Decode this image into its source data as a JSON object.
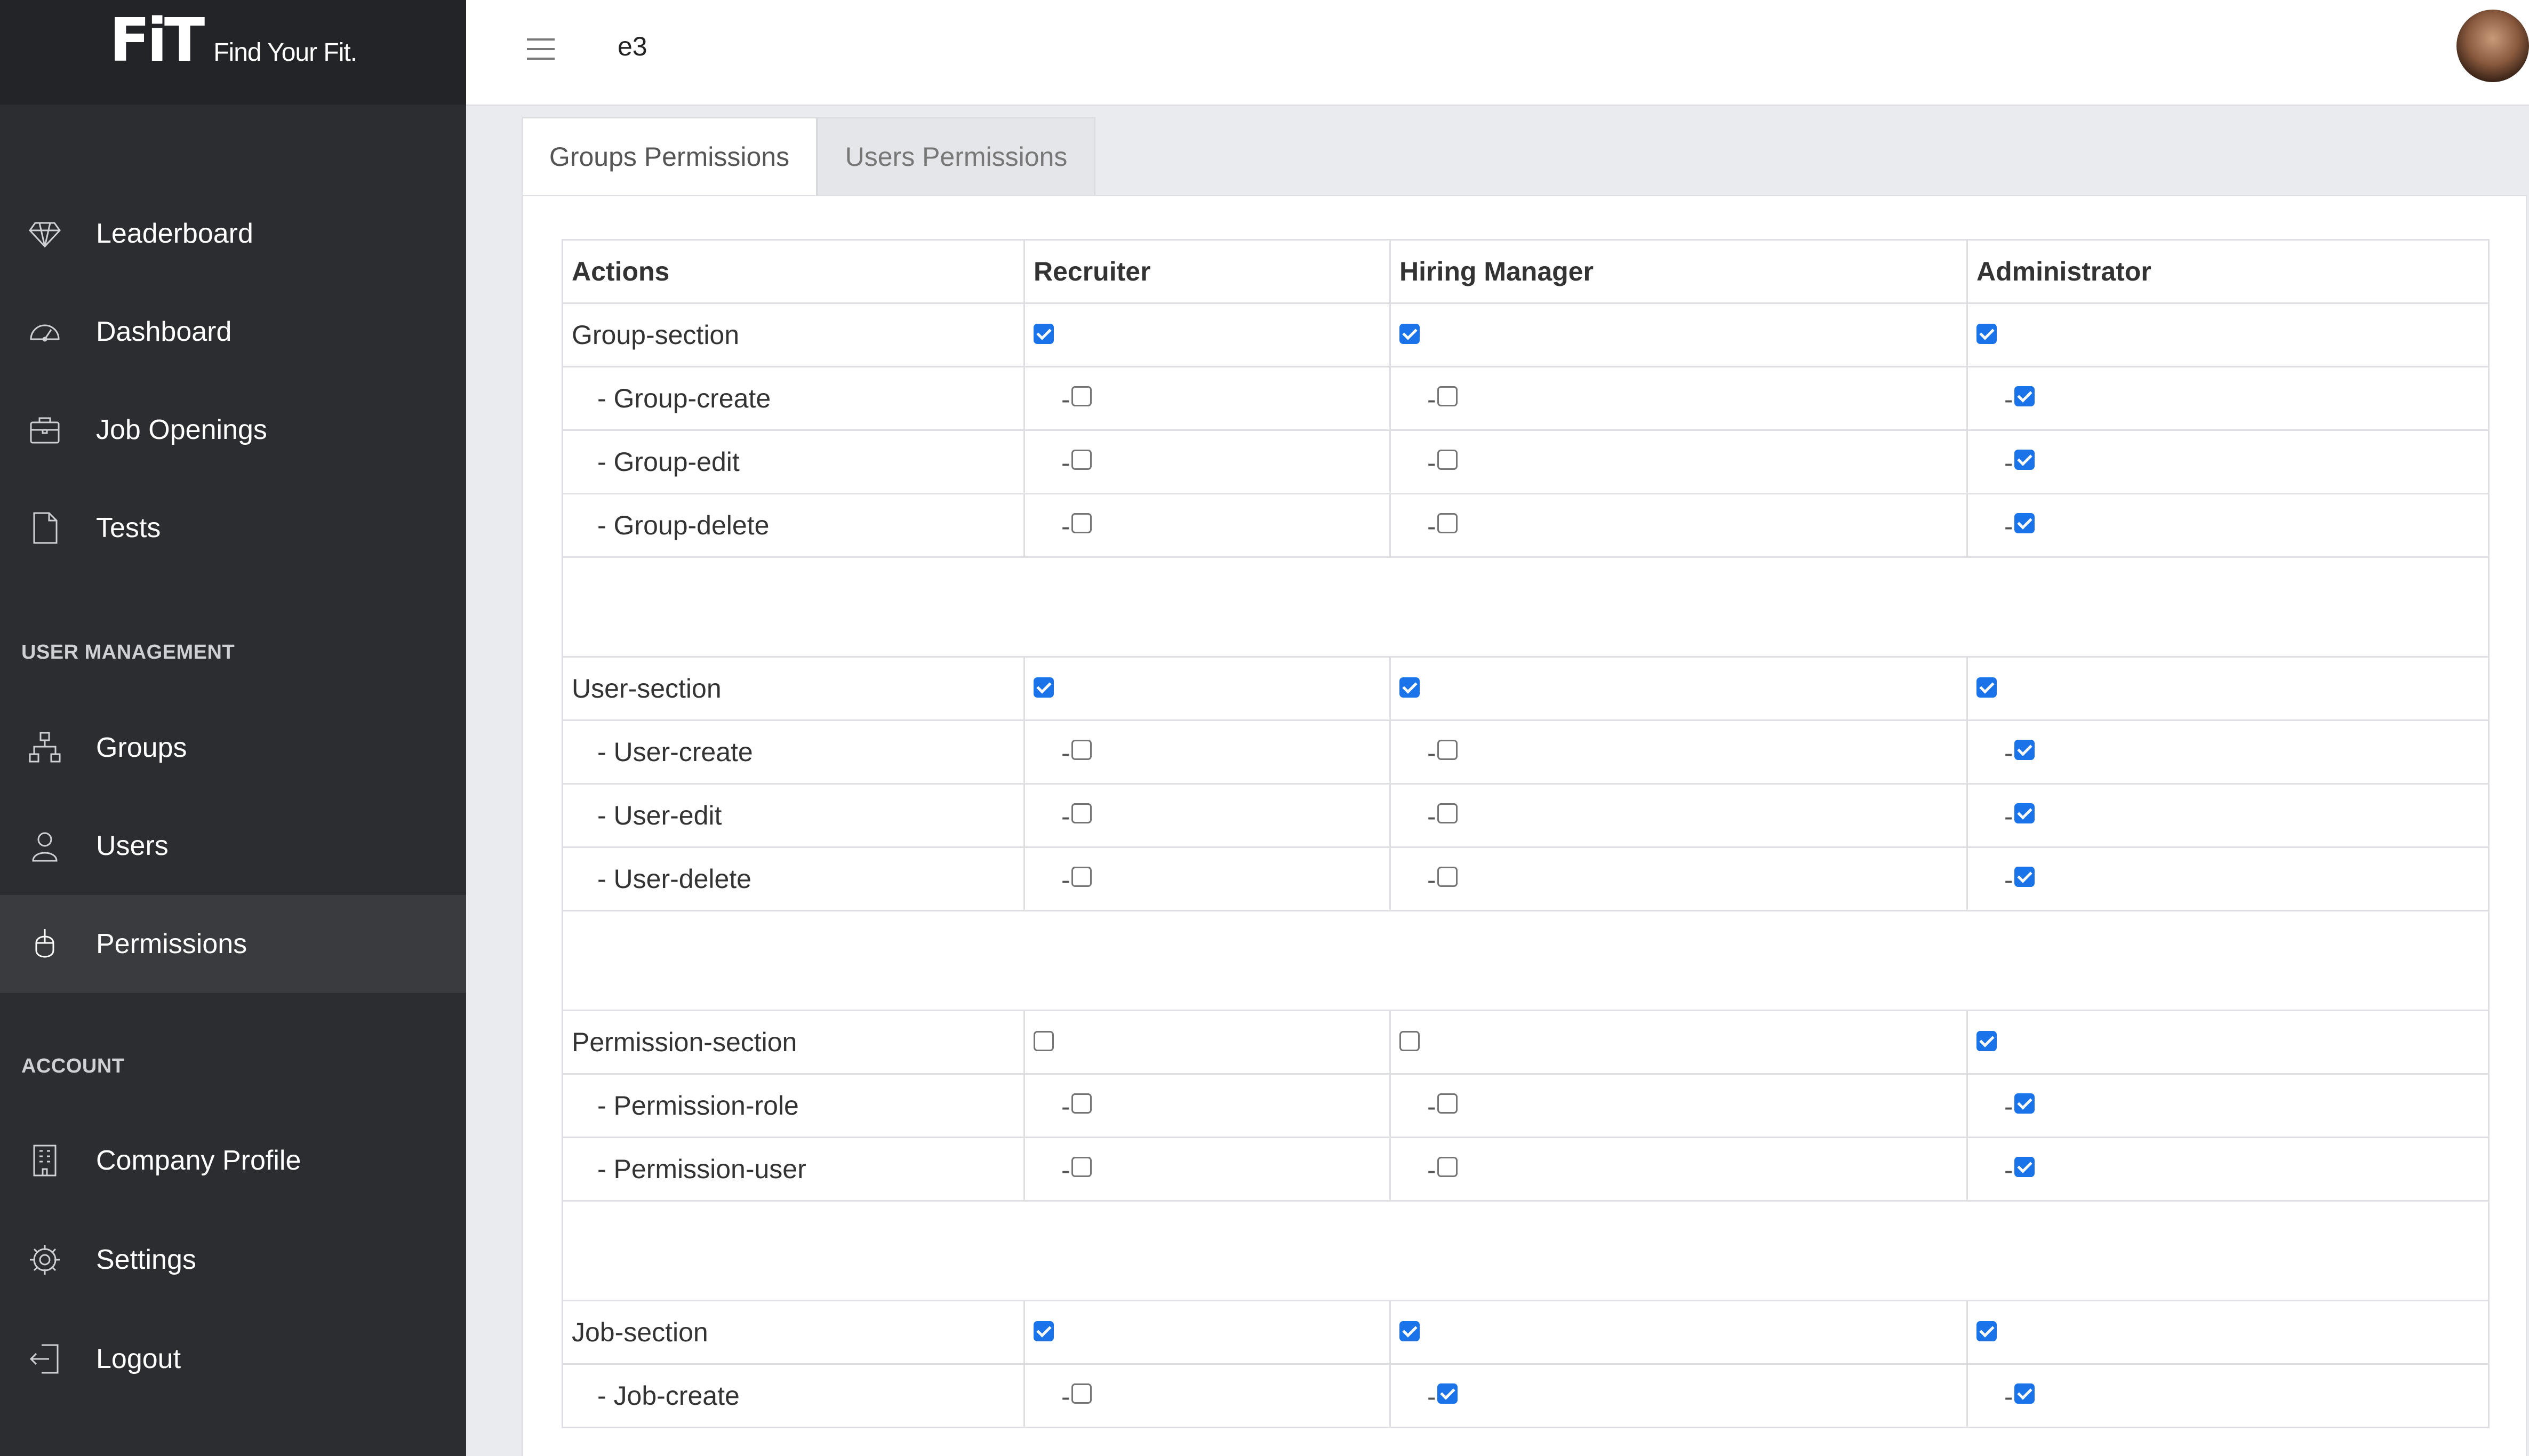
{
  "brand": {
    "logo": "FiT",
    "tagline": "Find Your Fit."
  },
  "topbar": {
    "title": "e3"
  },
  "sidebar": {
    "items": [
      {
        "label": "Leaderboard",
        "icon": "diamond-icon"
      },
      {
        "label": "Dashboard",
        "icon": "speedometer-icon"
      },
      {
        "label": "Job Openings",
        "icon": "briefcase-icon"
      },
      {
        "label": "Tests",
        "icon": "document-icon"
      }
    ],
    "user_management": {
      "heading": "USER MANAGEMENT",
      "items": [
        {
          "label": "Groups",
          "icon": "hierarchy-icon"
        },
        {
          "label": "Users",
          "icon": "user-icon"
        },
        {
          "label": "Permissions",
          "icon": "mouse-icon",
          "active": true
        }
      ]
    },
    "account": {
      "heading": "ACCOUNT",
      "items": [
        {
          "label": "Company Profile",
          "icon": "building-icon"
        },
        {
          "label": "Settings",
          "icon": "gear-icon"
        },
        {
          "label": "Logout",
          "icon": "logout-icon"
        }
      ]
    }
  },
  "tabs": [
    {
      "label": "Groups Permissions",
      "active": true
    },
    {
      "label": "Users Permissions",
      "active": false
    }
  ],
  "table": {
    "headers": [
      "Actions",
      "Recruiter",
      "Hiring Manager",
      "Administrator"
    ],
    "rows": [
      {
        "label": "Group-section",
        "sub": false,
        "values": [
          true,
          true,
          true
        ]
      },
      {
        "label": "- Group-create",
        "sub": true,
        "values": [
          false,
          false,
          true
        ]
      },
      {
        "label": "- Group-edit",
        "sub": true,
        "values": [
          false,
          false,
          true
        ]
      },
      {
        "label": "- Group-delete",
        "sub": true,
        "values": [
          false,
          false,
          true
        ]
      },
      {
        "spacer": true
      },
      {
        "label": "User-section",
        "sub": false,
        "values": [
          true,
          true,
          true
        ]
      },
      {
        "label": "- User-create",
        "sub": true,
        "values": [
          false,
          false,
          true
        ]
      },
      {
        "label": "- User-edit",
        "sub": true,
        "values": [
          false,
          false,
          true
        ]
      },
      {
        "label": "- User-delete",
        "sub": true,
        "values": [
          false,
          false,
          true
        ]
      },
      {
        "spacer": true
      },
      {
        "label": "Permission-section",
        "sub": false,
        "values": [
          false,
          false,
          true
        ]
      },
      {
        "label": "- Permission-role",
        "sub": true,
        "values": [
          false,
          false,
          true
        ]
      },
      {
        "label": "- Permission-user",
        "sub": true,
        "values": [
          false,
          false,
          true
        ]
      },
      {
        "spacer": true
      },
      {
        "label": "Job-section",
        "sub": false,
        "values": [
          true,
          true,
          true
        ]
      },
      {
        "label": "- Job-create",
        "sub": true,
        "values": [
          false,
          true,
          true
        ]
      }
    ]
  },
  "colors": {
    "sidebar_bg": "#2c2d30",
    "brand_bg": "#232427",
    "active_item_bg": "#3a3b3f",
    "checkbox_accent": "#1a73e8"
  }
}
